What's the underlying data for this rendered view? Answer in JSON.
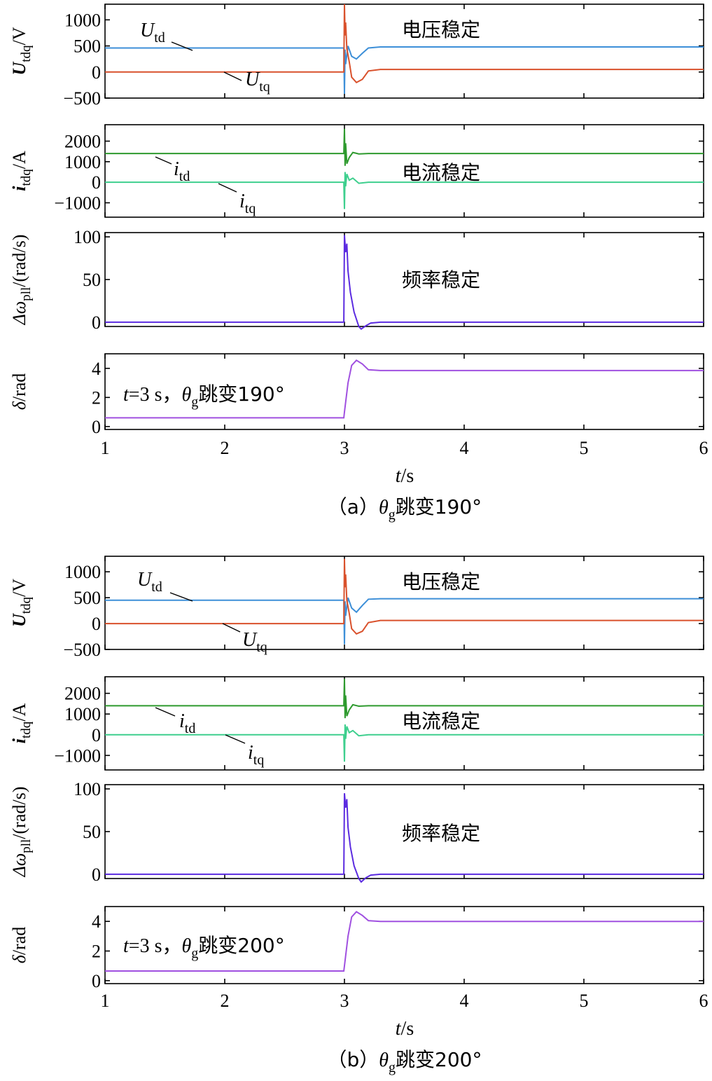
{
  "figure": {
    "x_axis": {
      "range": [
        1,
        6
      ],
      "ticks": [
        1,
        2,
        3,
        4,
        5,
        6
      ],
      "label_var": "t",
      "label_unit": "/s"
    },
    "subfigures": [
      {
        "id": "a",
        "caption": {
          "prefix": "（a）",
          "theta": "θ",
          "sub": "g",
          "text": "跳变190°"
        },
        "event_annotation": {
          "pre": "t",
          "eq": "=3 s，",
          "theta": "θ",
          "sub": "g",
          "text": "跳变190°"
        }
      },
      {
        "id": "b",
        "caption": {
          "prefix": "（b）",
          "theta": "θ",
          "sub": "g",
          "text": "跳变200°"
        },
        "event_annotation": {
          "pre": "t",
          "eq": "=3 s，",
          "theta": "θ",
          "sub": "g",
          "text": "跳变200°"
        }
      }
    ],
    "panel_text": {
      "voltage": {
        "status": "电压稳定",
        "ylabel_main": "U",
        "ylabel_sub": "tdq",
        "ylabel_unit": "/V",
        "series_labels": [
          {
            "main": "U",
            "sub": "td"
          },
          {
            "main": "U",
            "sub": "tq"
          }
        ]
      },
      "current": {
        "status": "电流稳定",
        "ylabel_main": "i",
        "ylabel_sub": "tdq",
        "ylabel_unit": "/A",
        "series_labels": [
          {
            "main": "i",
            "sub": "td"
          },
          {
            "main": "i",
            "sub": "tq"
          }
        ]
      },
      "frequency": {
        "status": "频率稳定",
        "ylabel_main": "Δω",
        "ylabel_sub": "pll",
        "ylabel_unit": "/(rad/s)"
      },
      "delta": {
        "ylabel_main": "δ",
        "ylabel_unit": "/rad"
      }
    }
  },
  "chart_data": [
    {
      "type": "line",
      "subfigure": "a",
      "panel": "voltage",
      "ylim": [
        -500,
        1300
      ],
      "yticks": [
        -500,
        0,
        500,
        1000
      ],
      "series": [
        {
          "name": "U_td",
          "color": "#3d8fd8",
          "x": [
            1,
            2.995,
            3.0,
            3.005,
            3.01,
            3.03,
            3.06,
            3.1,
            3.15,
            3.2,
            3.3,
            6
          ],
          "y": [
            460,
            460,
            -420,
            430,
            150,
            500,
            300,
            250,
            360,
            460,
            480,
            480
          ]
        },
        {
          "name": "U_tq",
          "color": "#d9512c",
          "x": [
            1,
            2.995,
            3.0,
            3.005,
            3.01,
            3.02,
            3.04,
            3.06,
            3.1,
            3.15,
            3.2,
            3.3,
            6
          ],
          "y": [
            0,
            0,
            1300,
            700,
            950,
            450,
            200,
            -100,
            -200,
            -140,
            20,
            50,
            50
          ]
        }
      ]
    },
    {
      "type": "line",
      "subfigure": "a",
      "panel": "current",
      "ylim": [
        -1700,
        2800
      ],
      "yticks": [
        -1000,
        0,
        1000,
        2000
      ],
      "series": [
        {
          "name": "i_td",
          "color": "#2e9a2e",
          "x": [
            1,
            2.995,
            3.0,
            3.005,
            3.01,
            3.02,
            3.04,
            3.07,
            3.12,
            3.2,
            6
          ],
          "y": [
            1400,
            1400,
            2600,
            800,
            1900,
            900,
            1200,
            1450,
            1380,
            1400,
            1400
          ]
        },
        {
          "name": "i_tq",
          "color": "#3ecf8e",
          "x": [
            1,
            2.995,
            3.0,
            3.005,
            3.01,
            3.02,
            3.04,
            3.07,
            3.12,
            3.2,
            6
          ],
          "y": [
            0,
            0,
            -1300,
            500,
            -200,
            400,
            100,
            200,
            -50,
            0,
            0
          ]
        }
      ]
    },
    {
      "type": "line",
      "subfigure": "a",
      "panel": "frequency",
      "ylim": [
        -5,
        105
      ],
      "yticks": [
        0,
        50,
        100
      ],
      "series": [
        {
          "color": "#5b2be0",
          "x": [
            1,
            2.995,
            3.0,
            3.01,
            3.02,
            3.03,
            3.05,
            3.08,
            3.12,
            3.14,
            3.18,
            3.22,
            3.3,
            6
          ],
          "y": [
            0,
            0,
            102,
            82,
            92,
            60,
            35,
            12,
            -5,
            -8,
            -4,
            -1,
            0,
            0
          ]
        }
      ]
    },
    {
      "type": "line",
      "subfigure": "a",
      "panel": "delta",
      "ylim": [
        -0.2,
        5
      ],
      "yticks": [
        0,
        2,
        4
      ],
      "series": [
        {
          "color": "#a050e0",
          "x": [
            1,
            2.995,
            3.0,
            3.03,
            3.06,
            3.1,
            3.15,
            3.2,
            3.3,
            6
          ],
          "y": [
            0.6,
            0.6,
            1.0,
            3.0,
            4.2,
            4.55,
            4.3,
            3.9,
            3.85,
            3.85
          ]
        }
      ]
    },
    {
      "type": "line",
      "subfigure": "b",
      "panel": "voltage",
      "ylim": [
        -500,
        1300
      ],
      "yticks": [
        -500,
        0,
        500,
        1000
      ],
      "series": [
        {
          "name": "U_td",
          "color": "#3d8fd8",
          "x": [
            1,
            2.995,
            3.0,
            3.005,
            3.01,
            3.03,
            3.06,
            3.1,
            3.15,
            3.2,
            3.3,
            6
          ],
          "y": [
            450,
            450,
            -400,
            430,
            150,
            500,
            300,
            220,
            350,
            470,
            480,
            480
          ]
        },
        {
          "name": "U_tq",
          "color": "#d9512c",
          "x": [
            1,
            2.995,
            3.0,
            3.005,
            3.01,
            3.02,
            3.04,
            3.06,
            3.1,
            3.15,
            3.2,
            3.3,
            6
          ],
          "y": [
            0,
            0,
            1250,
            700,
            950,
            450,
            200,
            -100,
            -200,
            -150,
            20,
            60,
            60
          ]
        }
      ]
    },
    {
      "type": "line",
      "subfigure": "b",
      "panel": "current",
      "ylim": [
        -1700,
        2800
      ],
      "yticks": [
        -1000,
        0,
        1000,
        2000
      ],
      "series": [
        {
          "name": "i_td",
          "color": "#2e9a2e",
          "x": [
            1,
            2.995,
            3.0,
            3.005,
            3.01,
            3.02,
            3.04,
            3.07,
            3.12,
            3.2,
            6
          ],
          "y": [
            1400,
            1400,
            2700,
            800,
            1900,
            900,
            1200,
            1450,
            1380,
            1400,
            1400
          ]
        },
        {
          "name": "i_tq",
          "color": "#3ecf8e",
          "x": [
            1,
            2.995,
            3.0,
            3.005,
            3.01,
            3.02,
            3.04,
            3.07,
            3.12,
            3.2,
            6
          ],
          "y": [
            0,
            0,
            -1300,
            500,
            -200,
            400,
            100,
            200,
            -50,
            0,
            0
          ]
        }
      ]
    },
    {
      "type": "line",
      "subfigure": "b",
      "panel": "frequency",
      "ylim": [
        -5,
        105
      ],
      "yticks": [
        0,
        50,
        100
      ],
      "series": [
        {
          "color": "#5b2be0",
          "x": [
            1,
            2.995,
            3.0,
            3.01,
            3.02,
            3.03,
            3.05,
            3.08,
            3.12,
            3.14,
            3.18,
            3.22,
            3.3,
            6
          ],
          "y": [
            0,
            0,
            95,
            78,
            88,
            55,
            32,
            10,
            -5,
            -9,
            -4,
            -1,
            0,
            0
          ]
        }
      ]
    },
    {
      "type": "line",
      "subfigure": "b",
      "panel": "delta",
      "ylim": [
        -0.2,
        5
      ],
      "yticks": [
        0,
        2,
        4
      ],
      "series": [
        {
          "color": "#a050e0",
          "x": [
            1,
            2.995,
            3.0,
            3.03,
            3.06,
            3.1,
            3.15,
            3.2,
            3.3,
            6
          ],
          "y": [
            0.65,
            0.65,
            1.0,
            3.0,
            4.3,
            4.65,
            4.4,
            4.05,
            4.0,
            4.0
          ]
        }
      ]
    }
  ]
}
